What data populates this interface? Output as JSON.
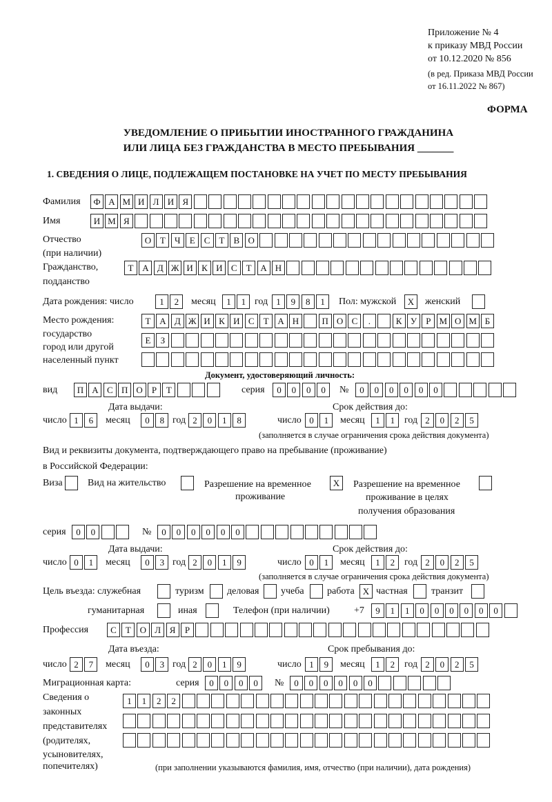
{
  "header": {
    "appendix_1": "Приложение № 4",
    "appendix_2": "к приказу МВД России",
    "appendix_3": "от 10.12.2020 № 856",
    "appendix_4": "(в ред. Приказа МВД России",
    "appendix_5": "от 16.11.2022 № 867)",
    "forma": "ФОРМА",
    "title_1": "УВЕДОМЛЕНИЕ О ПРИБЫТИИ ИНОСТРАННОГО ГРАЖДАНИНА",
    "title_2": "ИЛИ ЛИЦА БЕЗ ГРАЖДАНСТВА В МЕСТО ПРЕБЫВАНИЯ _______",
    "section_1": "1. СВЕДЕНИЯ О ЛИЦЕ, ПОДЛЕЖАЩЕМ ПОСТАНОВКЕ НА УЧЕТ ПО МЕСТУ ПРЕБЫВАНИЯ"
  },
  "labels": {
    "surname": "Фамилия",
    "name": "Имя",
    "patronymic_1": "Отчество",
    "patronymic_2": "(при наличии)",
    "citizenship_1": "Гражданство,",
    "citizenship_2": "подданство",
    "birth_date": "Дата рождения:   число",
    "day": "число",
    "month": "месяц",
    "year": "год",
    "sex": "Пол: мужской",
    "female": "женский",
    "birthplace_1": "Место рождения:",
    "birthplace_2": "государство",
    "birthplace_3": "город или другой",
    "birthplace_4": "населенный пункт",
    "id_doc": "Документ, удостоверяющий личность:",
    "kind": "вид",
    "series": "серия",
    "number": "№",
    "issue_date": "Дата выдачи:",
    "valid_until": "Срок действия до:",
    "validity_note": "(заполняется в случае ограничения срока действия документа)",
    "stay_doc_1": "Вид и реквизиты документа, подтверждающего право на пребывание (проживание)",
    "stay_doc_2": "в Российской Федерации:",
    "visa": "Виза",
    "residence": "Вид на жительство",
    "temp_permit_1": "Разрешение на временное",
    "temp_permit_2": "проживание",
    "edu_permit_1": "Разрешение на временное",
    "edu_permit_2": "проживание в целях",
    "edu_permit_3": "получения образования",
    "purpose": "Цель въезда: служебная",
    "tourism": "туризм",
    "business": "деловая",
    "study": "учеба",
    "work": "работа",
    "private": "частная",
    "transit": "транзит",
    "humanitarian": "гуманитарная",
    "other": "иная",
    "phone": "Телефон (при наличии)",
    "phone_prefix": "+7",
    "profession": "Профессия",
    "entry_date": "Дата въезда:",
    "stay_until": "Срок пребывания до:",
    "migration_card": "Миграционная карта:",
    "reps_1": "Сведения о",
    "reps_2": "законных",
    "reps_3": "представителях",
    "reps_4": "(родителях,",
    "reps_5": "усыновителях,",
    "reps_6": "попечителях)",
    "reps_note": "(при заполнении указываются фамилия, имя, отчество (при наличии), дата рождения)"
  },
  "values": {
    "surname": "ФАМИЛИЯ",
    "name": "ИМЯ",
    "patronymic": "ОТЧЕСТВО",
    "citizenship": "ТАДЖИКИСТАН",
    "birth_day": "12",
    "birth_month": "11",
    "birth_year": "1981",
    "male": "X",
    "female": "",
    "birthplace_1": "ТАДЖИКИСТАН ПОС. КУРМОМБ",
    "birthplace_2": "ЕЗ",
    "birthplace_3": "",
    "id_kind": "ПАСПОРТ",
    "id_series": "0000",
    "id_number": "000000",
    "id_issue_day": "16",
    "id_issue_month": "08",
    "id_issue_year": "2018",
    "id_valid_day": "01",
    "id_valid_month": "11",
    "id_valid_year": "2025",
    "visa": "",
    "residence": "",
    "temp_permit": "X",
    "edu_permit": "",
    "stay_series": "00",
    "stay_number": "000000",
    "stay_issue_day": "01",
    "stay_issue_month": "03",
    "stay_issue_year": "2019",
    "stay_valid_day": "01",
    "stay_valid_month": "12",
    "stay_valid_year": "2025",
    "purpose_official": "",
    "purpose_tourism": "",
    "purpose_business": "",
    "purpose_study": "",
    "purpose_work": "X",
    "purpose_private": "",
    "purpose_transit": "",
    "purpose_humanitarian": "",
    "purpose_other": "",
    "phone": "911000000",
    "profession": "СТОЛЯР",
    "entry_day": "27",
    "entry_month": "03",
    "entry_year": "2019",
    "stay_day": "19",
    "stay_month": "12",
    "stay_year": "2025",
    "mc_series": "0000",
    "mc_number": "000000",
    "reps_1": "1122",
    "reps_2": "",
    "reps_3": ""
  }
}
